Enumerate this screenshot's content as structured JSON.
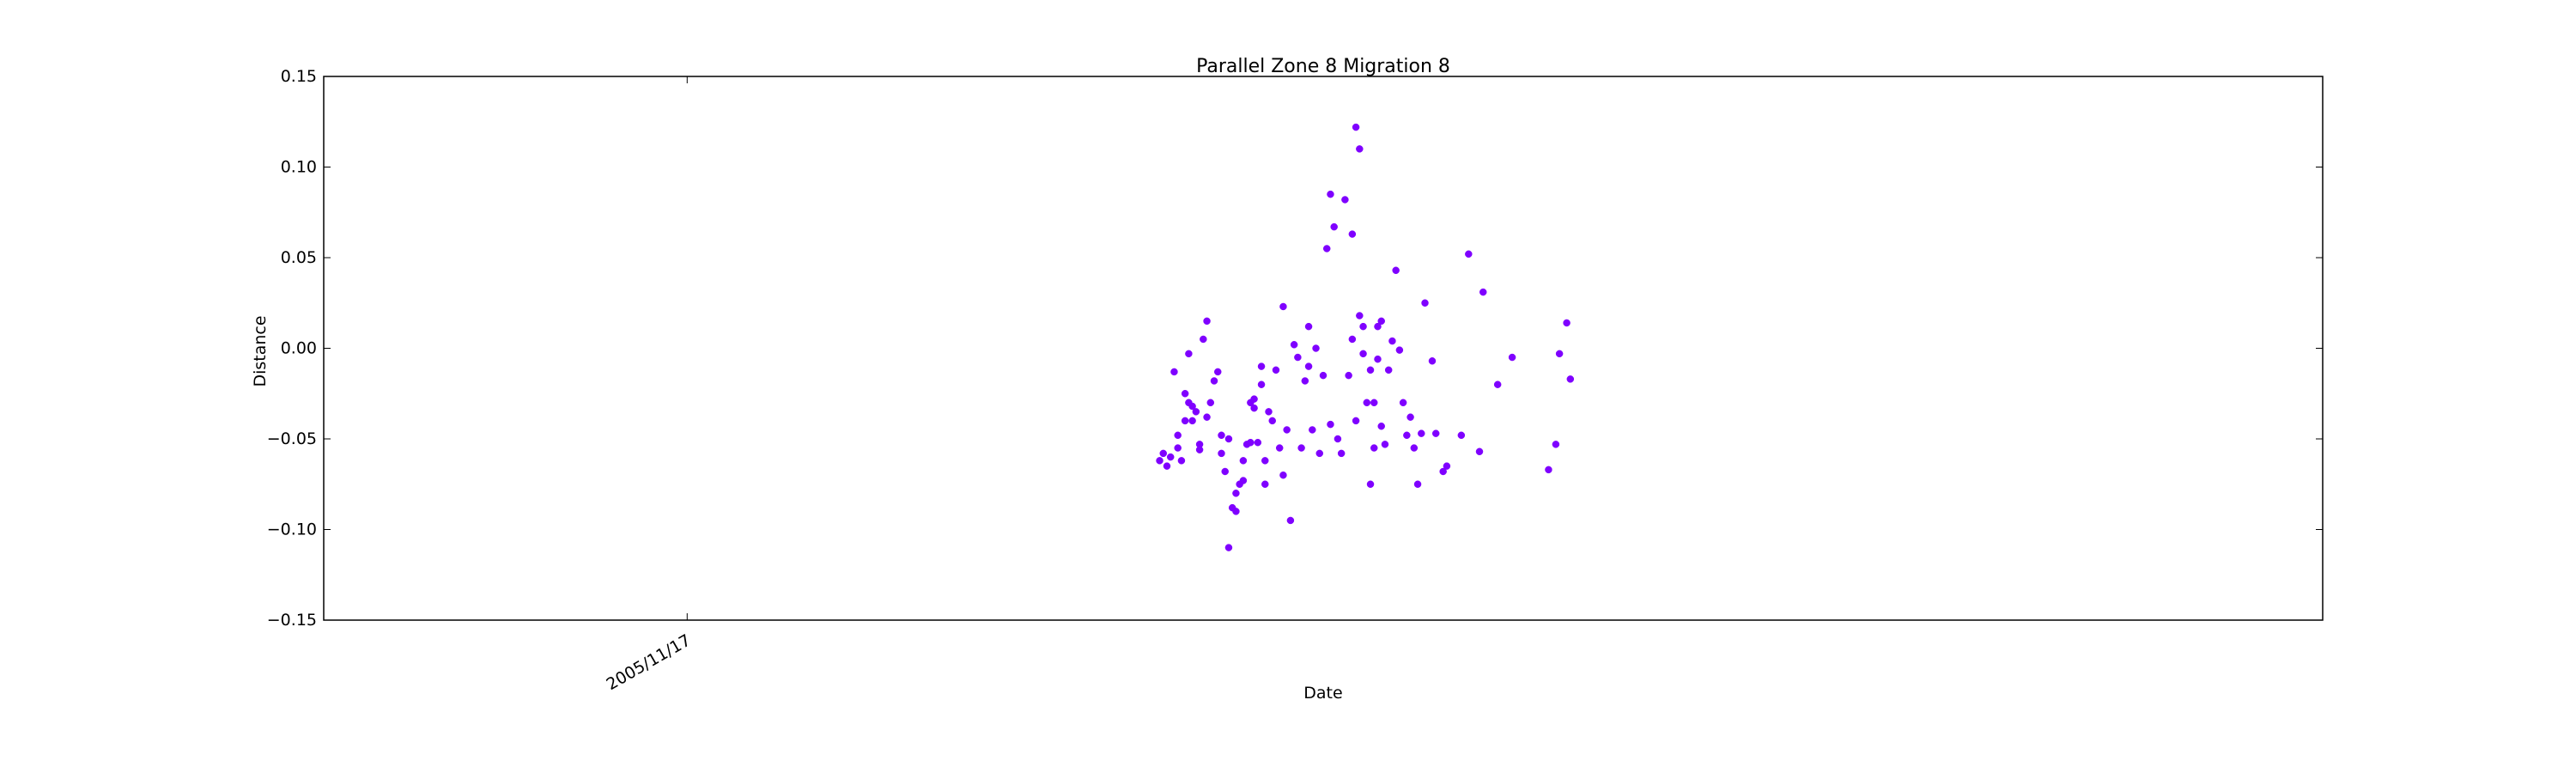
{
  "chart_data": {
    "type": "scatter",
    "title": "Parallel Zone 8 Migration 8",
    "xlabel": "Date",
    "ylabel": "Distance",
    "ylim": [
      -0.15,
      0.15
    ],
    "yticks": [
      "0.15",
      "0.10",
      "0.05",
      "0.00",
      "−0.05",
      "−0.10",
      "−0.15"
    ],
    "yticks_values": [
      0.15,
      0.1,
      0.05,
      0.0,
      -0.05,
      -0.1,
      -0.15
    ],
    "xticks": [
      "2005/11/17"
    ],
    "xlim_index": [
      -100,
      450
    ],
    "xticks_index": [
      0
    ],
    "grid": false,
    "marker_color": "#7f00ff",
    "series": [
      {
        "x_index": [
          130,
          131,
          132,
          133,
          134,
          135,
          135,
          136,
          137,
          137,
          138,
          138,
          139,
          139,
          140,
          141,
          141,
          142,
          143,
          143,
          144,
          145,
          146,
          147,
          147,
          148,
          149,
          149,
          150,
          151,
          151,
          152,
          153,
          153,
          154,
          155,
          155,
          156,
          156,
          157,
          158,
          158,
          159,
          159,
          160,
          161,
          162,
          163,
          164,
          164,
          165,
          166,
          167,
          168,
          169,
          170,
          171,
          171,
          172,
          173,
          174,
          175,
          176,
          177,
          177,
          178,
          179,
          180,
          181,
          182,
          183,
          183,
          184,
          184,
          185,
          185,
          186,
          186,
          187,
          188,
          188,
          189,
          189,
          190,
          190,
          191,
          191,
          192,
          193,
          194,
          195,
          196,
          197,
          198,
          199,
          200,
          201,
          202,
          203,
          205,
          206,
          208,
          209,
          213,
          215,
          218,
          219,
          223,
          227,
          237,
          239,
          240,
          242,
          243
        ],
        "y": [
          -0.062,
          -0.058,
          -0.065,
          -0.06,
          -0.013,
          -0.055,
          -0.048,
          -0.062,
          -0.025,
          -0.04,
          -0.03,
          -0.003,
          -0.032,
          -0.04,
          -0.035,
          -0.056,
          -0.053,
          0.005,
          -0.038,
          0.015,
          -0.03,
          -0.018,
          -0.013,
          -0.048,
          -0.058,
          -0.068,
          -0.05,
          -0.11,
          -0.088,
          -0.08,
          -0.09,
          -0.075,
          -0.062,
          -0.073,
          -0.053,
          -0.052,
          -0.03,
          -0.033,
          -0.028,
          -0.052,
          -0.01,
          -0.02,
          -0.062,
          -0.075,
          -0.035,
          -0.04,
          -0.012,
          -0.055,
          -0.07,
          0.023,
          -0.045,
          -0.095,
          0.002,
          -0.005,
          -0.055,
          -0.018,
          0.012,
          -0.01,
          -0.045,
          0.0,
          -0.058,
          -0.015,
          0.055,
          -0.042,
          0.085,
          0.067,
          -0.05,
          -0.058,
          0.082,
          -0.015,
          0.005,
          0.063,
          -0.04,
          0.122,
          0.11,
          0.018,
          0.012,
          -0.003,
          -0.03,
          -0.075,
          -0.012,
          -0.055,
          -0.03,
          -0.006,
          0.012,
          0.015,
          -0.043,
          -0.053,
          -0.012,
          0.004,
          0.043,
          -0.001,
          -0.03,
          -0.048,
          -0.038,
          -0.055,
          -0.075,
          -0.047,
          0.025,
          -0.007,
          -0.047,
          -0.068,
          -0.065,
          -0.048,
          0.052,
          -0.057,
          0.031,
          -0.02,
          -0.005,
          -0.067,
          -0.053,
          -0.003,
          0.014,
          -0.017
        ]
      }
    ]
  }
}
